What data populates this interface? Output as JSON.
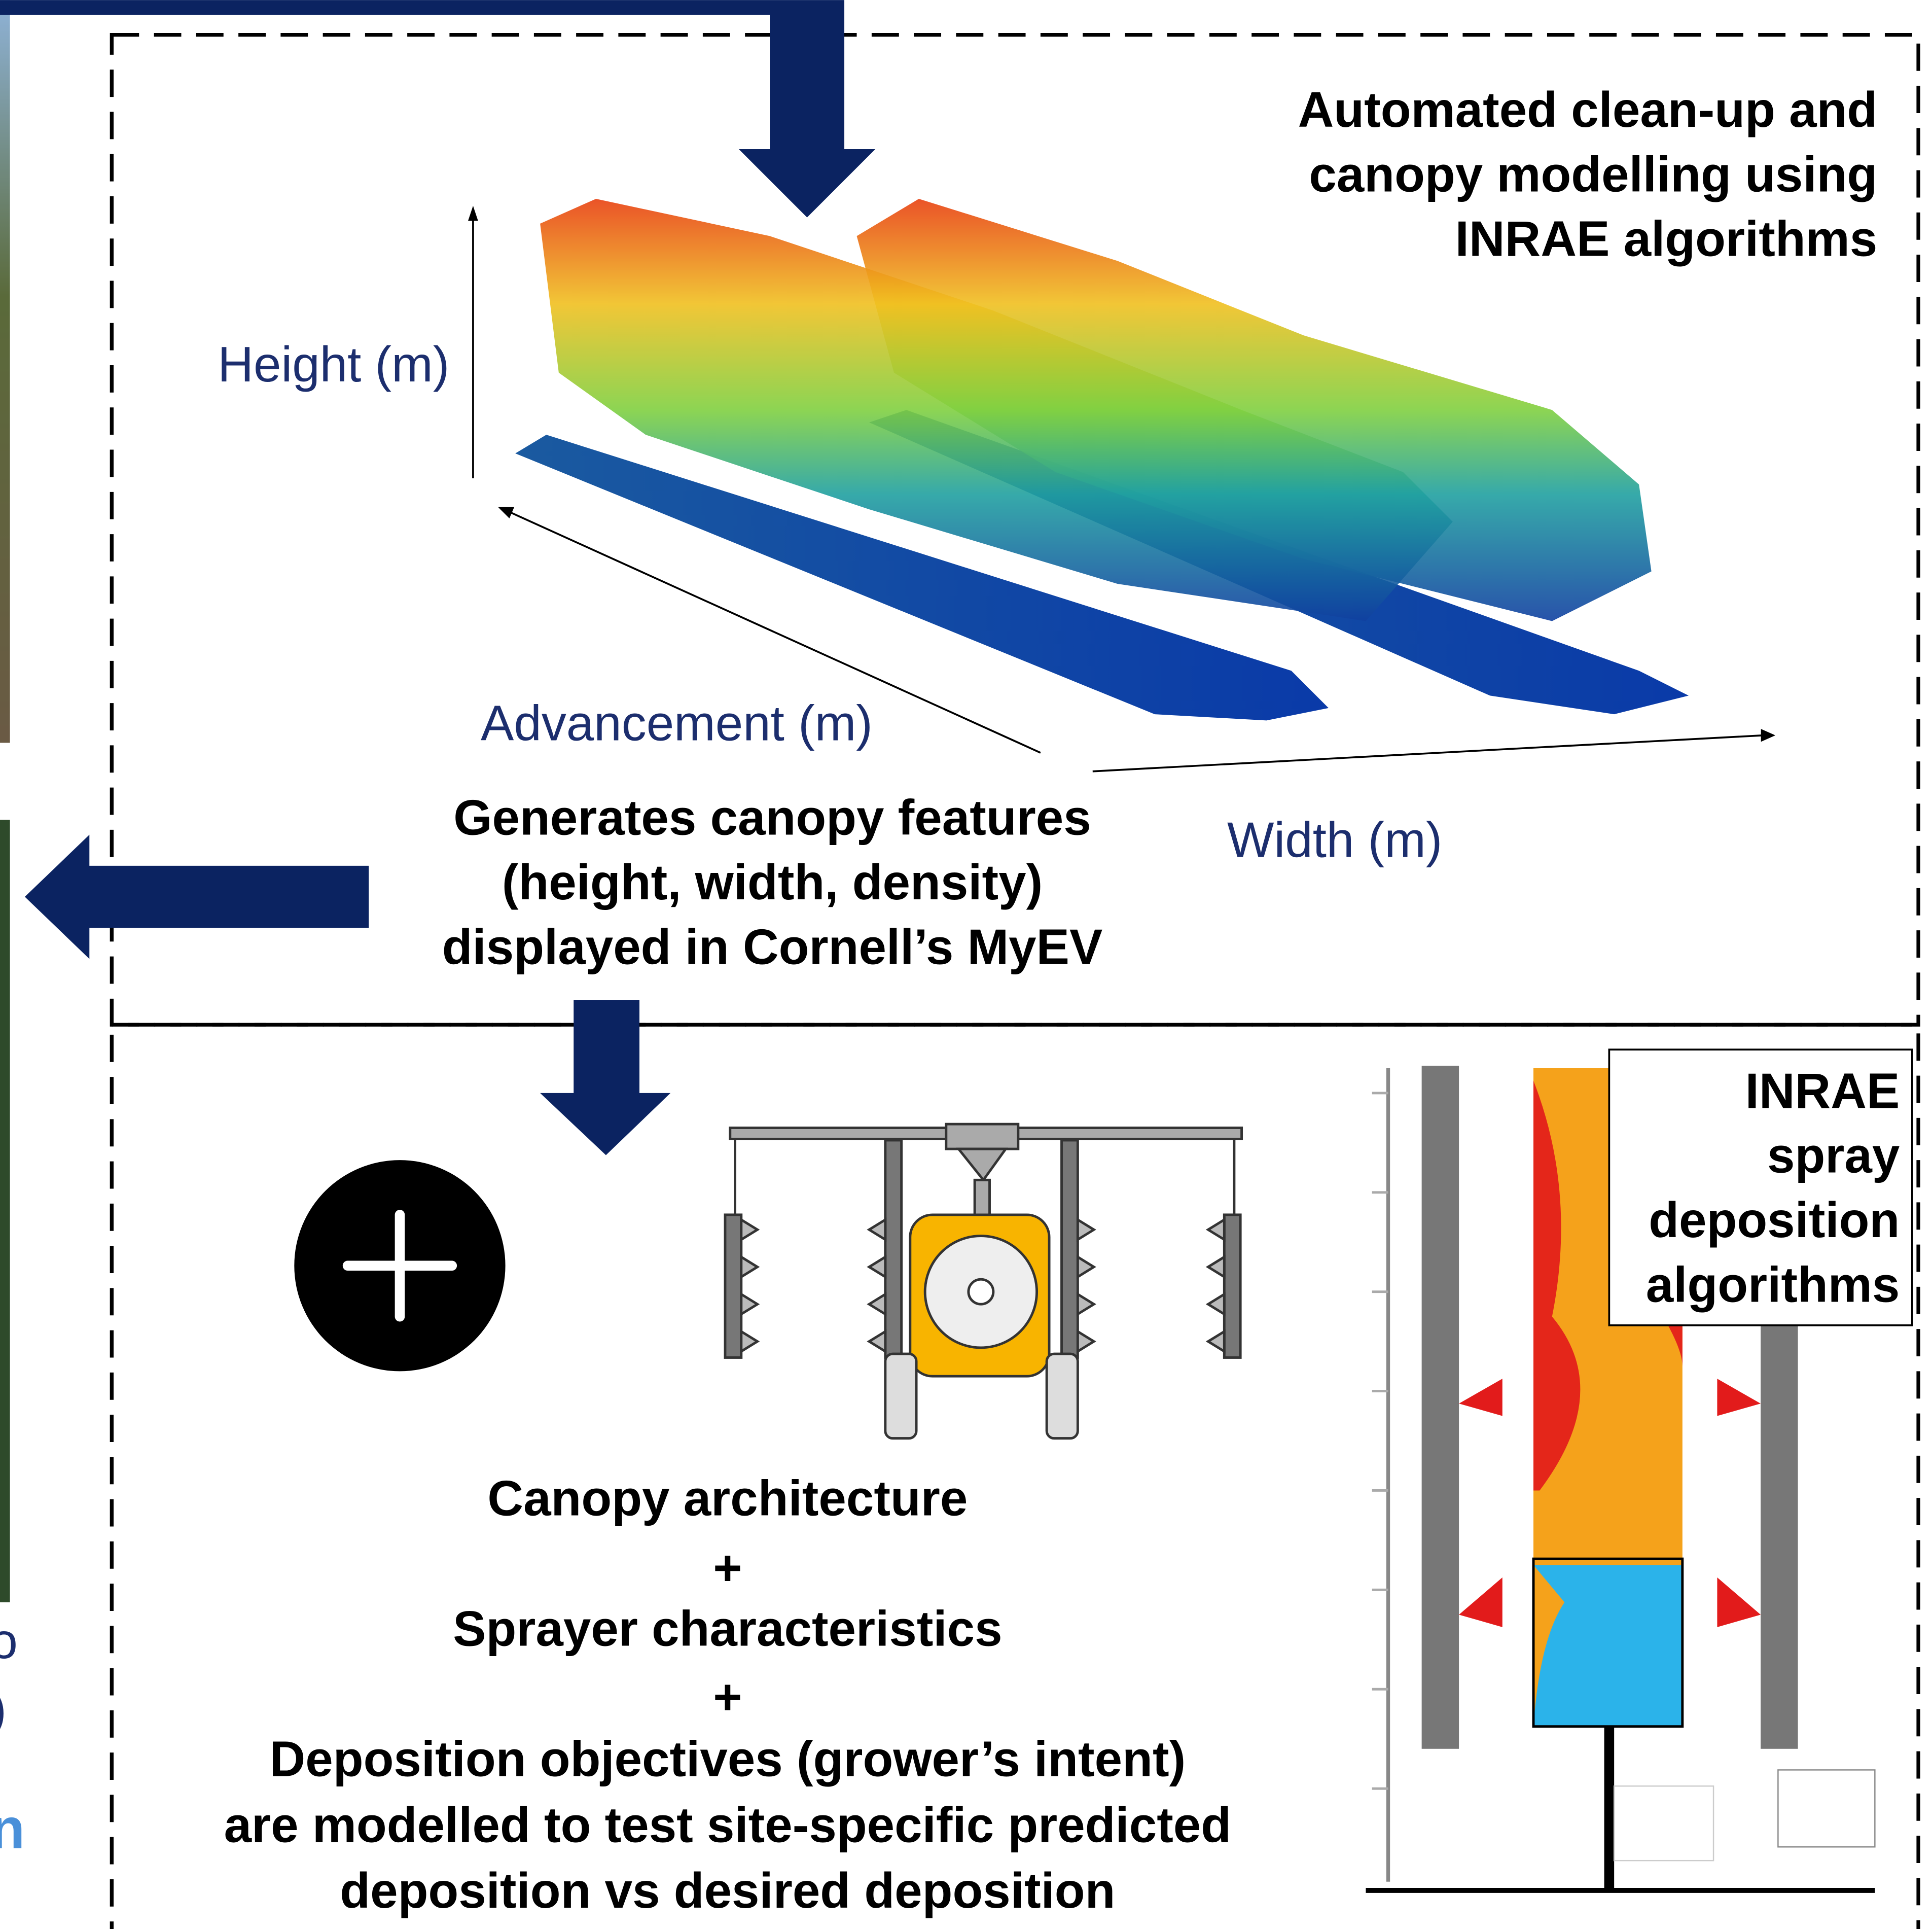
{
  "top_panel": {
    "title": [
      "Automated clean-up and",
      "canopy modelling using",
      "INRAE algorithms"
    ],
    "axes": {
      "height": "Height (m)",
      "advancement": "Advancement (m)",
      "width": "Width (m)"
    },
    "features": [
      "Generates canopy features",
      "(height, width, density)",
      "displayed in Cornell’s MyEV"
    ]
  },
  "bottom_panel": {
    "summary": [
      "Canopy architecture",
      "+",
      "Sprayer characteristics",
      "+",
      "Deposition objectives (grower’s intent)",
      "are modelled to test site-specific predicted",
      "deposition vs desired deposition"
    ],
    "inrae_box": [
      "INRAE",
      "spray",
      "deposition",
      "algorithms"
    ]
  },
  "left_fragments": [
    "o",
    ")",
    "n"
  ]
}
